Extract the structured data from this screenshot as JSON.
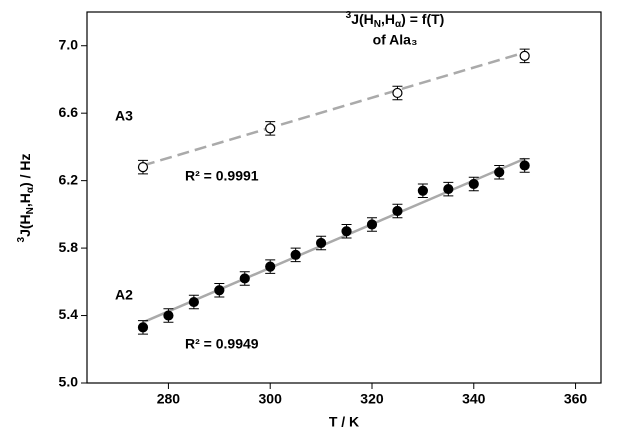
{
  "chart_data": {
    "type": "scatter",
    "title": [
      "3",
      "J(H",
      "N",
      ",H",
      "α",
      ") = f(T)"
    ],
    "subtitle": "of Ala₃",
    "x_label": "T / K",
    "y_label": [
      "3",
      "J(H",
      "N",
      ",H",
      "α",
      ") / Hz"
    ],
    "xlim": [
      264,
      365
    ],
    "ylim": [
      5.0,
      7.2
    ],
    "xticks": [
      280,
      300,
      320,
      340,
      360
    ],
    "yticks": [
      {
        "value": 5.0,
        "label": "5.0"
      },
      5.4,
      5.8,
      6.2,
      6.6,
      {
        "value": 7.0,
        "label": "7.0"
      }
    ],
    "series": [
      {
        "name": "A3",
        "color": "#000000",
        "marker": "open",
        "x": [
          275,
          300,
          325,
          350
        ],
        "values": [
          6.28,
          6.51,
          6.72,
          6.94
        ],
        "errors": [
          0.04,
          0.04,
          0.04,
          0.04
        ],
        "fit_x": [
          275,
          350
        ],
        "fit_values": [
          6.29,
          6.96
        ],
        "fit_color": "#aaaaaa",
        "fit_dashed": true,
        "r2_label": "R² = 0.9991"
      },
      {
        "name": "A2",
        "color": "#000000",
        "marker": "filled",
        "x": [
          275,
          280,
          285,
          290,
          295,
          300,
          305,
          310,
          315,
          320,
          325,
          330,
          335,
          340,
          345,
          350
        ],
        "values": [
          5.33,
          5.4,
          5.48,
          5.55,
          5.62,
          5.69,
          5.76,
          5.83,
          5.9,
          5.94,
          6.02,
          6.14,
          6.15,
          6.18,
          6.25,
          6.29
        ],
        "errors": [
          0.04,
          0.04,
          0.04,
          0.04,
          0.04,
          0.04,
          0.04,
          0.04,
          0.04,
          0.04,
          0.04,
          0.04,
          0.04,
          0.04,
          0.04,
          0.04
        ],
        "fit_x": [
          275,
          350
        ],
        "fit_values": [
          5.36,
          6.33
        ],
        "fit_color": "#aaaaaa",
        "fit_dashed": false,
        "r2_label": "R² = 0.9949"
      }
    ]
  }
}
